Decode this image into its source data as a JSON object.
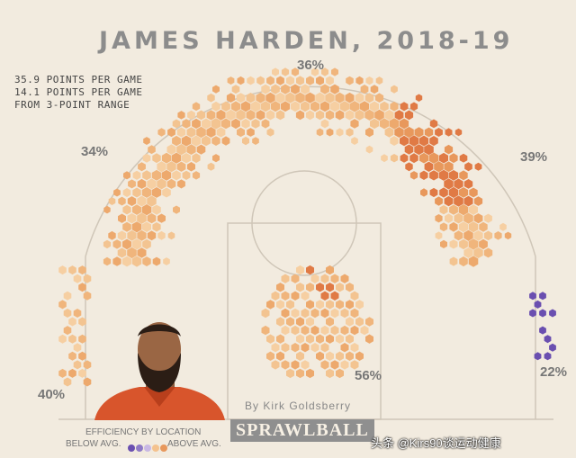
{
  "title": "JAMES HARDEN, 2018-19",
  "stats": [
    "35.9 POINTS PER GAME",
    "14.1 POINTS PER GAME",
    "FROM 3-POINT RANGE"
  ],
  "zones": {
    "top": "36%",
    "left_wing": "34%",
    "right_wing": "39%",
    "left_corner": "40%",
    "right_corner": "22%",
    "paint": "56%"
  },
  "credit": "By Kirk Goldsberry",
  "brand": "SPRAWLBALL",
  "legend": {
    "title": "EFFICIENCY BY LOCATION",
    "below": "BELOW AVG.",
    "above": "ABOVE AVG."
  },
  "watermark": "头条 @Kirs90谈运动健康",
  "colors": {
    "background": "#f2ebdf",
    "below_avg": "#6a4fb0",
    "avg": "#f4c28e",
    "above_avg": "#e07a45",
    "legend_scale": [
      "#6a4fb0",
      "#8f7ac6",
      "#c9b8e4",
      "#f4c28e",
      "#e8985c",
      "#e07a45"
    ]
  }
}
